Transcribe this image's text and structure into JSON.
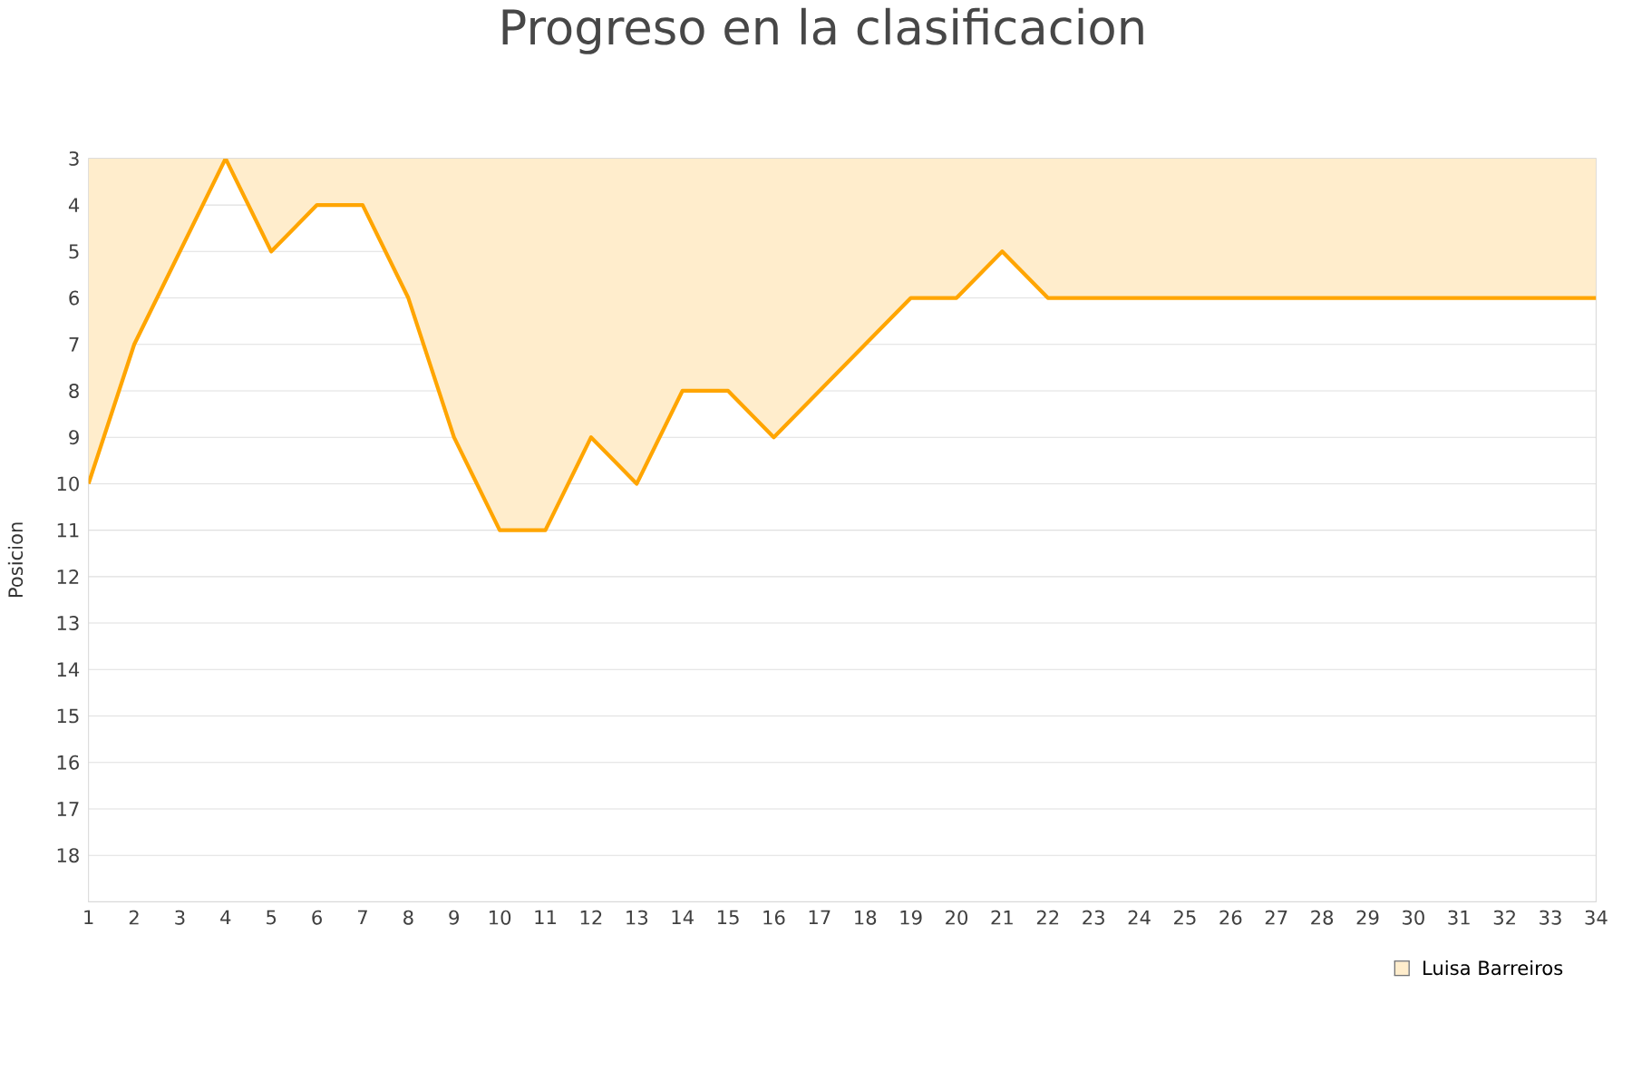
{
  "chart_data": {
    "type": "area",
    "title": "Progreso en la clasificacion",
    "ylabel": "Posicion",
    "x": [
      1,
      2,
      3,
      4,
      5,
      6,
      7,
      8,
      9,
      10,
      11,
      12,
      13,
      14,
      15,
      16,
      17,
      18,
      19,
      20,
      21,
      22,
      23,
      24,
      25,
      26,
      27,
      28,
      29,
      30,
      31,
      32,
      33,
      34
    ],
    "series": [
      {
        "name": "Luisa Barreiros",
        "color": "#ffa500",
        "values": [
          10,
          7,
          5,
          3,
          5,
          4,
          4,
          6,
          9,
          11,
          11,
          9,
          10,
          8,
          8,
          9,
          8,
          7,
          6,
          6,
          5,
          6,
          6,
          6,
          6,
          6,
          6,
          6,
          6,
          6,
          6,
          6,
          6,
          6
        ]
      }
    ],
    "xlim": [
      1,
      34
    ],
    "xticks": [
      1,
      2,
      3,
      4,
      5,
      6,
      7,
      8,
      9,
      10,
      11,
      12,
      13,
      14,
      15,
      16,
      17,
      18,
      19,
      20,
      21,
      22,
      23,
      24,
      25,
      26,
      27,
      28,
      29,
      30,
      31,
      32,
      33,
      34
    ],
    "ylim": [
      19,
      3
    ],
    "yticks": [
      3,
      4,
      5,
      6,
      7,
      8,
      9,
      10,
      11,
      12,
      13,
      14,
      15,
      16,
      17,
      18
    ],
    "grid": "y",
    "legend": "bottom right",
    "marker": "none",
    "line_style": "solid"
  }
}
